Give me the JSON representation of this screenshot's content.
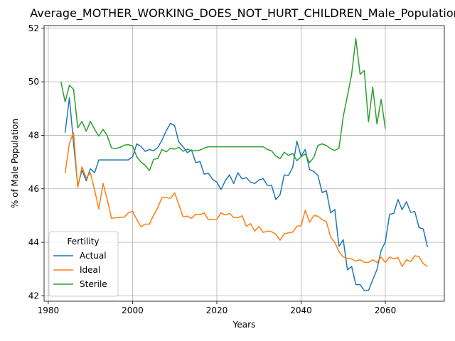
{
  "chart_data": {
    "type": "line",
    "title": "Average_MOTHER_WORKING_DOES_NOT_HURT_CHILDREN_Male_Population",
    "xlabel": "Years",
    "ylabel": "% of Male Population",
    "xlim": [
      1979,
      2074
    ],
    "ylim": [
      41.8,
      52.1
    ],
    "xticks": [
      1980,
      2000,
      2020,
      2040,
      2060
    ],
    "yticks": [
      42,
      44,
      46,
      48,
      50,
      52
    ],
    "grid": true,
    "legend": {
      "title": "Fertility",
      "placement": "lower-left"
    },
    "series": [
      {
        "name": "Actual",
        "color": "#1f77b4",
        "x": [
          1984,
          1985,
          1986,
          1987,
          1988,
          1989,
          1990,
          1991,
          1992,
          1993,
          1994,
          1995,
          1996,
          1997,
          1998,
          1999,
          2000,
          2001,
          2002,
          2003,
          2004,
          2005,
          2006,
          2007,
          2008,
          2009,
          2010,
          2011,
          2012,
          2013,
          2014,
          2015,
          2016,
          2017,
          2018,
          2019,
          2020,
          2021,
          2022,
          2023,
          2024,
          2025,
          2026,
          2027,
          2028,
          2029,
          2030,
          2031,
          2032,
          2033,
          2034,
          2035,
          2036,
          2037,
          2038,
          2039,
          2040,
          2041,
          2042,
          2043,
          2044,
          2045,
          2046,
          2047,
          2048,
          2049,
          2050,
          2051,
          2052,
          2053,
          2054,
          2055,
          2056,
          2057,
          2058,
          2059,
          2060,
          2061,
          2062,
          2063,
          2064,
          2065,
          2066,
          2067,
          2068,
          2069,
          2070
        ],
        "values": [
          48.1,
          49.4,
          47.7,
          46.1,
          46.7,
          46.3,
          46.75,
          46.6,
          47.08,
          47.08,
          47.08,
          47.08,
          47.08,
          47.08,
          47.08,
          47.08,
          47.2,
          47.68,
          47.58,
          47.4,
          47.47,
          47.42,
          47.55,
          47.82,
          48.17,
          48.45,
          48.35,
          47.75,
          47.57,
          47.35,
          47.45,
          46.98,
          47.02,
          46.55,
          46.58,
          46.35,
          46.25,
          45.97,
          46.3,
          46.52,
          46.2,
          46.6,
          46.37,
          46.42,
          46.25,
          46.2,
          46.33,
          46.38,
          46.13,
          46.13,
          45.6,
          45.78,
          46.52,
          46.5,
          46.8,
          47.78,
          47.22,
          47.47,
          46.72,
          46.65,
          46.5,
          45.86,
          45.93,
          45.1,
          45.23,
          43.85,
          44.1,
          42.97,
          43.1,
          42.42,
          42.42,
          42.2,
          42.2,
          42.6,
          42.98,
          43.7,
          44.02,
          45.05,
          45.08,
          45.6,
          45.22,
          45.52,
          45.12,
          45.15,
          44.55,
          44.5,
          43.82
        ]
      },
      {
        "name": "Ideal",
        "color": "#ff7f0e",
        "x": [
          1984,
          1985,
          1986,
          1987,
          1988,
          1989,
          1990,
          1991,
          1992,
          1993,
          1994,
          1995,
          1996,
          1997,
          1998,
          1999,
          2000,
          2001,
          2002,
          2003,
          2004,
          2005,
          2006,
          2007,
          2008,
          2009,
          2010,
          2011,
          2012,
          2013,
          2014,
          2015,
          2016,
          2017,
          2018,
          2019,
          2020,
          2021,
          2022,
          2023,
          2024,
          2025,
          2026,
          2027,
          2028,
          2029,
          2030,
          2031,
          2032,
          2033,
          2034,
          2035,
          2036,
          2037,
          2038,
          2039,
          2040,
          2041,
          2042,
          2043,
          2044,
          2045,
          2046,
          2047,
          2048,
          2049,
          2050,
          2051,
          2052,
          2053,
          2054,
          2055,
          2056,
          2057,
          2058,
          2059,
          2060,
          2061,
          2062,
          2063,
          2064,
          2065,
          2066,
          2067,
          2068,
          2069,
          2070
        ],
        "values": [
          46.58,
          47.7,
          48.1,
          46.05,
          46.82,
          46.4,
          46.6,
          45.95,
          45.25,
          46.2,
          45.6,
          44.9,
          44.92,
          44.94,
          44.94,
          45.1,
          45.16,
          44.85,
          44.58,
          44.68,
          44.68,
          45.02,
          45.3,
          45.68,
          45.68,
          45.64,
          45.85,
          45.4,
          44.95,
          44.98,
          44.9,
          45.05,
          45.03,
          45.1,
          44.85,
          44.85,
          44.86,
          45.1,
          45.02,
          45.08,
          44.93,
          44.92,
          45.0,
          44.6,
          44.7,
          44.42,
          44.6,
          44.37,
          44.42,
          44.4,
          44.3,
          44.08,
          44.32,
          44.35,
          44.38,
          44.6,
          44.62,
          45.2,
          44.75,
          45.0,
          44.98,
          44.85,
          44.77,
          44.2,
          44.0,
          43.65,
          43.45,
          43.4,
          43.38,
          43.3,
          43.35,
          43.25,
          43.25,
          43.35,
          43.25,
          43.45,
          43.25,
          43.45,
          43.38,
          43.43,
          43.1,
          43.35,
          43.28,
          43.5,
          43.47,
          43.2,
          43.1
        ]
      },
      {
        "name": "Sterile",
        "color": "#2ca02c",
        "x": [
          1983,
          1984,
          1985,
          1986,
          1987,
          1988,
          1989,
          1990,
          1991,
          1992,
          1993,
          1994,
          1995,
          1996,
          1997,
          1998,
          1999,
          2000,
          2001,
          2002,
          2003,
          2004,
          2005,
          2006,
          2007,
          2008,
          2009,
          2010,
          2011,
          2012,
          2013,
          2014,
          2015,
          2016,
          2017,
          2018,
          2019,
          2020,
          2021,
          2022,
          2023,
          2024,
          2025,
          2026,
          2027,
          2028,
          2029,
          2030,
          2031,
          2032,
          2033,
          2034,
          2035,
          2036,
          2037,
          2038,
          2039,
          2040,
          2041,
          2042,
          2043,
          2044,
          2045,
          2046,
          2047,
          2048,
          2049,
          2050,
          2051,
          2052,
          2053,
          2054,
          2055,
          2056,
          2057,
          2058,
          2059,
          2060
        ],
        "values": [
          50.0,
          49.25,
          49.87,
          49.72,
          48.28,
          48.52,
          48.15,
          48.52,
          48.22,
          47.97,
          48.22,
          47.98,
          47.53,
          47.5,
          47.55,
          47.63,
          47.65,
          47.6,
          47.2,
          47.0,
          46.88,
          46.68,
          47.1,
          47.13,
          47.47,
          47.38,
          47.52,
          47.48,
          47.55,
          47.4,
          47.48,
          47.43,
          47.42,
          47.45,
          47.52,
          47.57,
          47.57,
          47.57,
          47.57,
          47.57,
          47.57,
          47.57,
          47.57,
          47.57,
          47.57,
          47.57,
          47.57,
          47.57,
          47.57,
          47.47,
          47.42,
          47.23,
          47.13,
          47.37,
          47.25,
          47.32,
          47.05,
          47.2,
          47.3,
          46.98,
          47.17,
          47.62,
          47.68,
          47.62,
          47.5,
          47.43,
          47.52,
          48.7,
          49.48,
          50.28,
          51.62,
          50.28,
          50.42,
          48.5,
          49.8,
          48.42,
          49.35,
          48.25
        ]
      }
    ]
  }
}
